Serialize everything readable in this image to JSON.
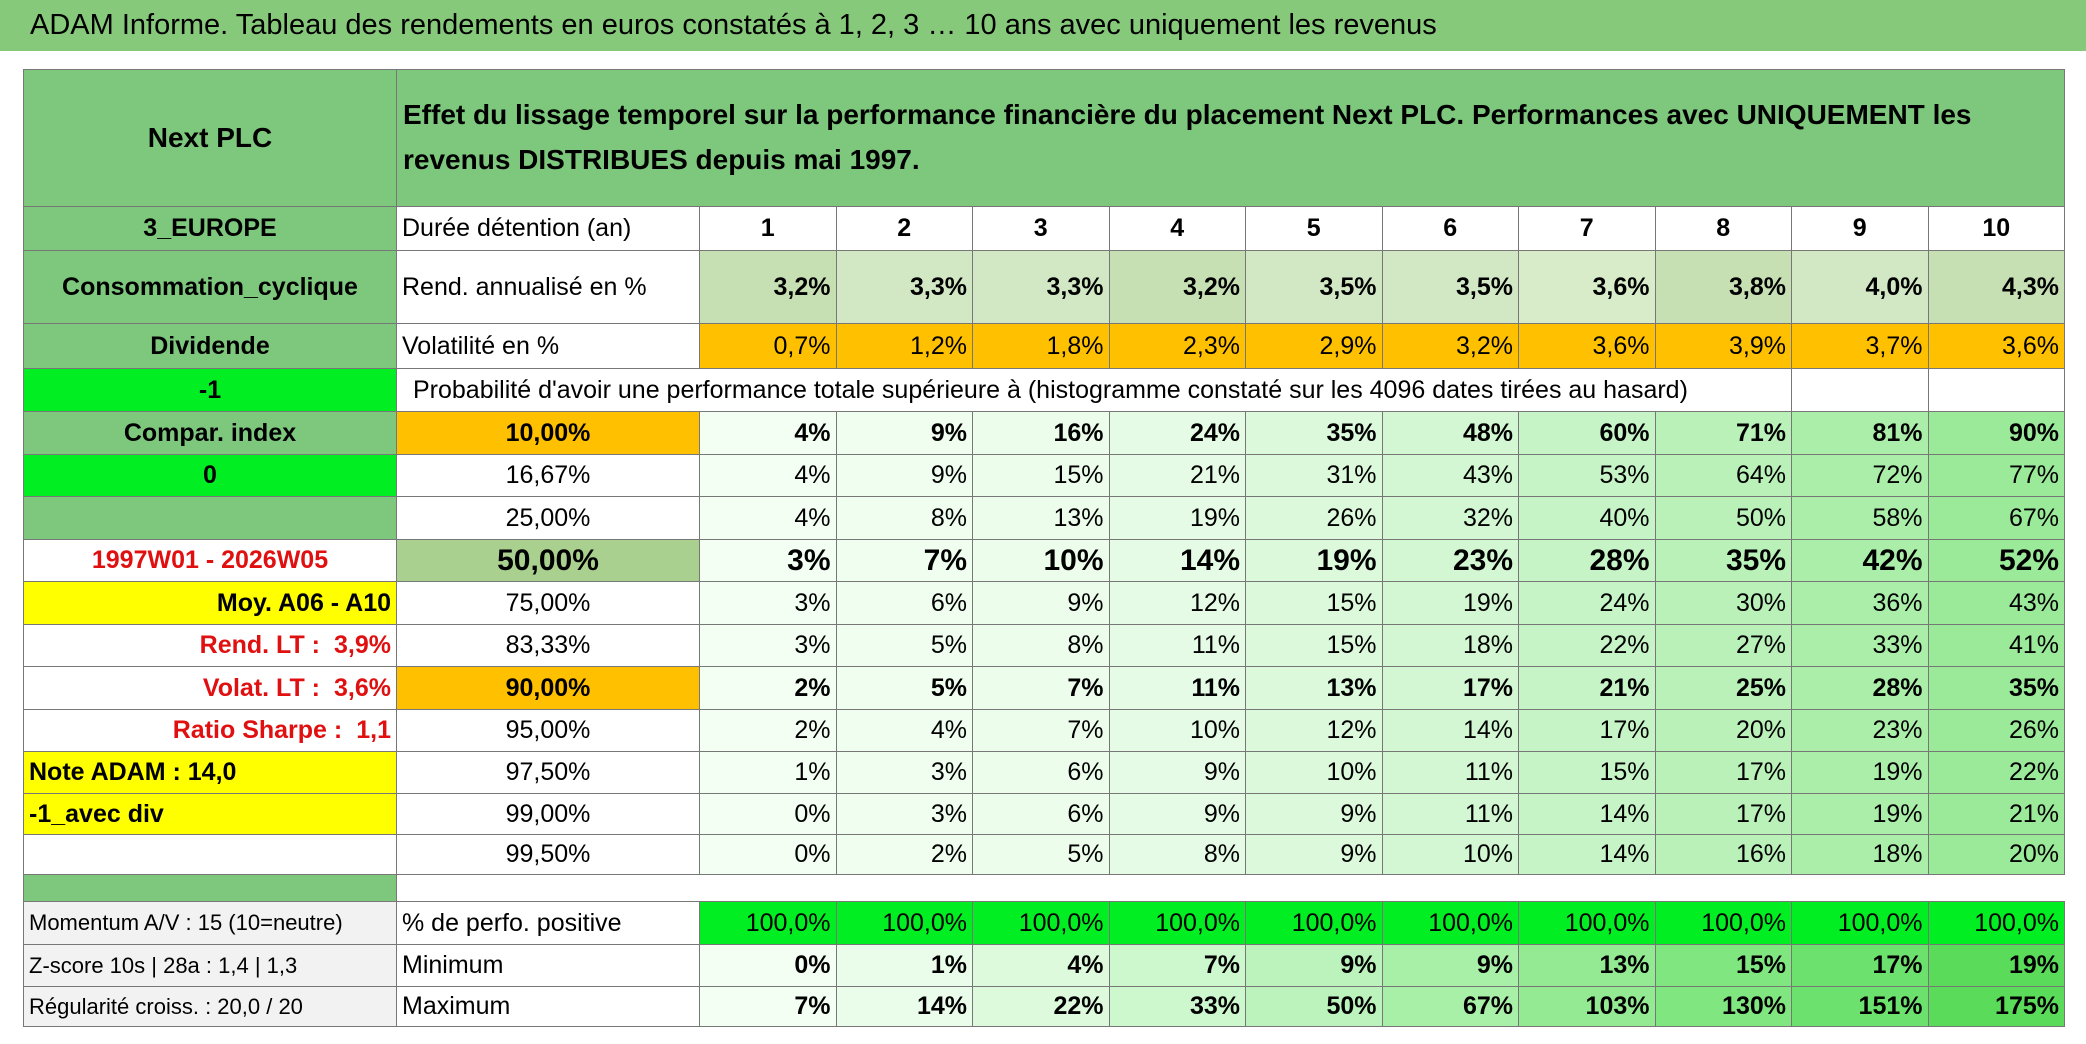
{
  "header": {
    "title": "ADAM Informe. Tableau des rendements en euros constatés à 1, 2, 3 … 10 ans avec uniquement les revenus"
  },
  "sidebar": {
    "name": "Next PLC",
    "region": "3_EUROPE",
    "sector": "Consommation_cyclique",
    "kind": "Dividende",
    "code": "-1",
    "compare_label": "Compar. index",
    "compare_value": "0",
    "period": "1997W01 - 2026W05",
    "average": "Moy. A06 - A10",
    "rend_lt_label": "Rend. LT :",
    "rend_lt": "3,9%",
    "volat_lt_label": "Volat. LT :",
    "volat_lt": "3,6%",
    "sharpe_label": "Ratio Sharpe :",
    "sharpe": "1,1",
    "note": "Note ADAM : 14,0",
    "variant": "-1_avec div",
    "momentum": "Momentum A/V : 15 (10=neutre)",
    "zscore": "Z-score 10s | 28a : 1,4 | 1,3",
    "regularity": "Régularité croiss. : 20,0 / 20"
  },
  "table": {
    "description": "Effet du lissage temporel sur la performance financière du placement Next PLC. Performances avec UNIQUEMENT les revenus DISTRIBUES depuis mai 1997.",
    "durations_label": "Durée détention (an)",
    "durations": [
      "1",
      "2",
      "3",
      "4",
      "5",
      "6",
      "7",
      "8",
      "9",
      "10"
    ],
    "rend_label": "Rend. annualisé en %",
    "rend": [
      "3,2%",
      "3,3%",
      "3,3%",
      "3,2%",
      "3,5%",
      "3,5%",
      "3,6%",
      "3,8%",
      "4,0%",
      "4,3%"
    ],
    "volat_label": "Volatilité en %",
    "volat": [
      "0,7%",
      "1,2%",
      "1,8%",
      "2,3%",
      "2,9%",
      "3,2%",
      "3,6%",
      "3,9%",
      "3,7%",
      "3,6%"
    ],
    "probability_label": "Probabilité d'avoir une performance totale supérieure à (histogramme constaté sur les 4096 dates tirées au hasard)",
    "percentiles": [
      {
        "level": "10,00%",
        "values": [
          "4%",
          "9%",
          "16%",
          "24%",
          "35%",
          "48%",
          "60%",
          "71%",
          "81%",
          "90%"
        ]
      },
      {
        "level": "16,67%",
        "values": [
          "4%",
          "9%",
          "15%",
          "21%",
          "31%",
          "43%",
          "53%",
          "64%",
          "72%",
          "77%"
        ]
      },
      {
        "level": "25,00%",
        "values": [
          "4%",
          "8%",
          "13%",
          "19%",
          "26%",
          "32%",
          "40%",
          "50%",
          "58%",
          "67%"
        ]
      },
      {
        "level": "50,00%",
        "values": [
          "3%",
          "7%",
          "10%",
          "14%",
          "19%",
          "23%",
          "28%",
          "35%",
          "42%",
          "52%"
        ]
      },
      {
        "level": "75,00%",
        "values": [
          "3%",
          "6%",
          "9%",
          "12%",
          "15%",
          "19%",
          "24%",
          "30%",
          "36%",
          "43%"
        ]
      },
      {
        "level": "83,33%",
        "values": [
          "3%",
          "5%",
          "8%",
          "11%",
          "15%",
          "18%",
          "22%",
          "27%",
          "33%",
          "41%"
        ]
      },
      {
        "level": "90,00%",
        "values": [
          "2%",
          "5%",
          "7%",
          "11%",
          "13%",
          "17%",
          "21%",
          "25%",
          "28%",
          "35%"
        ]
      },
      {
        "level": "95,00%",
        "values": [
          "2%",
          "4%",
          "7%",
          "10%",
          "12%",
          "14%",
          "17%",
          "20%",
          "23%",
          "26%"
        ]
      },
      {
        "level": "97,50%",
        "values": [
          "1%",
          "3%",
          "6%",
          "9%",
          "10%",
          "11%",
          "15%",
          "17%",
          "19%",
          "22%"
        ]
      },
      {
        "level": "99,00%",
        "values": [
          "0%",
          "3%",
          "6%",
          "9%",
          "9%",
          "11%",
          "14%",
          "17%",
          "19%",
          "21%"
        ]
      },
      {
        "level": "99,50%",
        "values": [
          "0%",
          "2%",
          "5%",
          "8%",
          "9%",
          "10%",
          "14%",
          "16%",
          "18%",
          "20%"
        ]
      }
    ],
    "summary": [
      {
        "label": "% de perfo. positive",
        "values": [
          "100,0%",
          "100,0%",
          "100,0%",
          "100,0%",
          "100,0%",
          "100,0%",
          "100,0%",
          "100,0%",
          "100,0%",
          "100,0%"
        ]
      },
      {
        "label": "Minimum",
        "values": [
          "0%",
          "1%",
          "4%",
          "7%",
          "9%",
          "9%",
          "13%",
          "15%",
          "17%",
          "19%"
        ]
      },
      {
        "label": "Maximum",
        "values": [
          "7%",
          "14%",
          "22%",
          "33%",
          "50%",
          "67%",
          "103%",
          "130%",
          "151%",
          "175%"
        ]
      }
    ]
  }
}
